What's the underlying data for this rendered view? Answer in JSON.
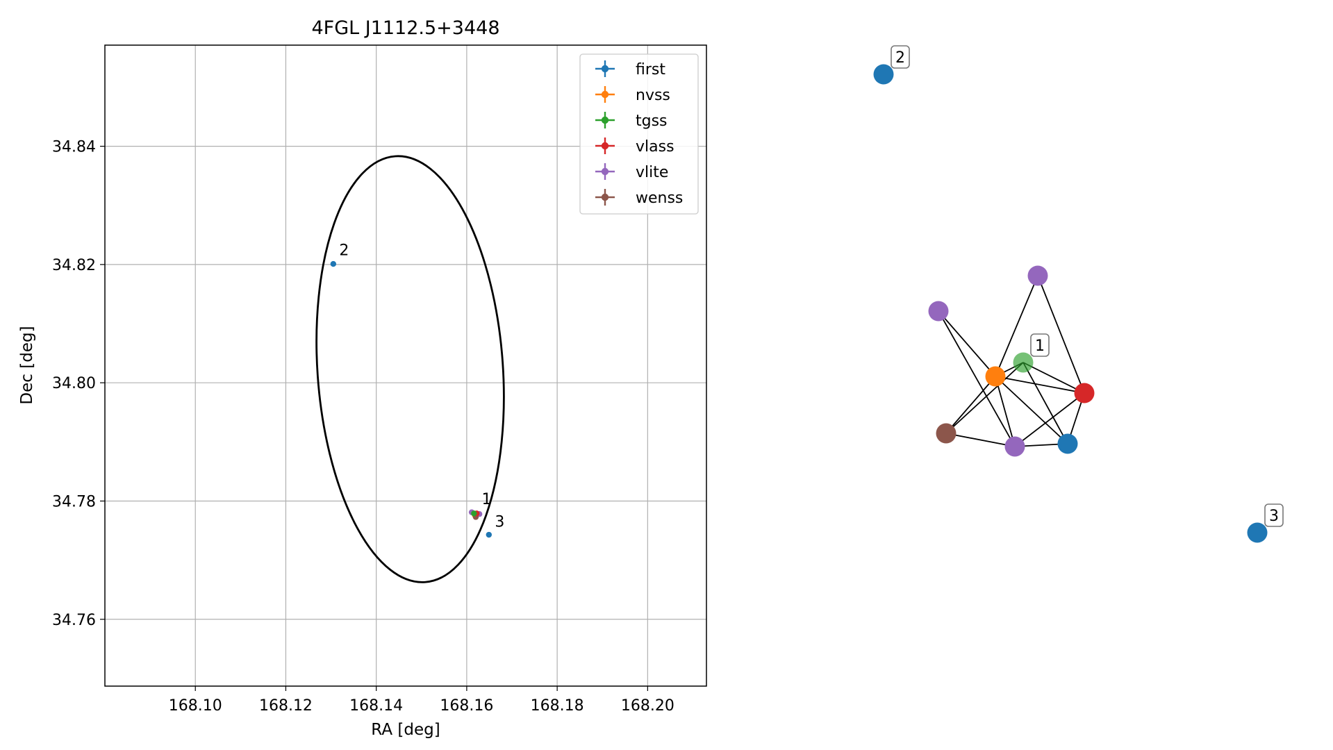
{
  "chart_data": [
    {
      "type": "scatter",
      "title": "4FGL J1112.5+3448",
      "xlabel": "RA [deg]",
      "ylabel": "Dec [deg]",
      "xlim": [
        168.08,
        168.213
      ],
      "ylim": [
        34.7487,
        34.8571
      ],
      "xticks": [
        {
          "v": 168.1,
          "label": "168.10"
        },
        {
          "v": 168.12,
          "label": "168.12"
        },
        {
          "v": 168.14,
          "label": "168.14"
        },
        {
          "v": 168.16,
          "label": "168.16"
        },
        {
          "v": 168.18,
          "label": "168.18"
        },
        {
          "v": 168.2,
          "label": "168.20"
        }
      ],
      "yticks": [
        {
          "v": 34.76,
          "label": "34.76"
        },
        {
          "v": 34.78,
          "label": "34.78"
        },
        {
          "v": 34.8,
          "label": "34.80"
        },
        {
          "v": 34.82,
          "label": "34.82"
        },
        {
          "v": 34.84,
          "label": "34.84"
        }
      ],
      "grid": true,
      "legend_position": "upper right",
      "legend": [
        {
          "name": "first",
          "color": "#1f77b4"
        },
        {
          "name": "nvss",
          "color": "#ff7f0e"
        },
        {
          "name": "tgss",
          "color": "#2ca02c"
        },
        {
          "name": "vlass",
          "color": "#d62728"
        },
        {
          "name": "vlite",
          "color": "#9467bd"
        },
        {
          "name": "wenss",
          "color": "#8c564b"
        }
      ],
      "ellipse": {
        "center_ra": 168.1475,
        "center_dec": 34.8023,
        "semi_axis_ra": 0.0205,
        "semi_axis_dec": 0.0361,
        "color": "#000000"
      },
      "points": [
        {
          "series": "first",
          "ra": 168.1305,
          "dec": 34.8201
        },
        {
          "series": "first",
          "ra": 168.1649,
          "dec": 34.7743
        },
        {
          "series": "vlite",
          "ra": 168.1611,
          "dec": 34.7781
        },
        {
          "series": "vlite",
          "ra": 168.1628,
          "dec": 34.7778
        },
        {
          "series": "nvss",
          "ra": 168.1618,
          "dec": 34.7776
        },
        {
          "series": "wenss",
          "ra": 168.162,
          "dec": 34.7773
        },
        {
          "series": "vlass",
          "ra": 168.1622,
          "dec": 34.7779
        },
        {
          "series": "tgss",
          "ra": 168.1616,
          "dec": 34.7779
        }
      ],
      "annotations": [
        {
          "text": "1",
          "ra": 168.1627,
          "dec": 34.779
        },
        {
          "text": "2",
          "ra": 168.1312,
          "dec": 34.8211
        },
        {
          "text": "3",
          "ra": 168.1656,
          "dec": 34.7752
        }
      ]
    },
    {
      "type": "network",
      "nodes": [
        {
          "id": "first_2",
          "series": "first",
          "label": "2"
        },
        {
          "id": "first_3",
          "series": "first",
          "label": "3"
        },
        {
          "id": "vlite_a",
          "series": "vlite",
          "label": ""
        },
        {
          "id": "vlite_b",
          "series": "vlite",
          "label": ""
        },
        {
          "id": "tgss",
          "series": "tgss",
          "label": "1"
        },
        {
          "id": "nvss",
          "series": "nvss",
          "label": ""
        },
        {
          "id": "vlass",
          "series": "vlass",
          "label": ""
        },
        {
          "id": "wenss",
          "series": "wenss",
          "label": ""
        },
        {
          "id": "vlite_c",
          "series": "vlite",
          "label": ""
        },
        {
          "id": "first_1",
          "series": "first",
          "label": ""
        }
      ],
      "edges": [
        [
          "vlite_b",
          "nvss"
        ],
        [
          "vlite_b",
          "vlass"
        ],
        [
          "vlite_a",
          "nvss"
        ],
        [
          "vlite_a",
          "vlite_c"
        ],
        [
          "nvss",
          "tgss"
        ],
        [
          "nvss",
          "vlass"
        ],
        [
          "nvss",
          "wenss"
        ],
        [
          "nvss",
          "vlite_c"
        ],
        [
          "nvss",
          "first_1"
        ],
        [
          "tgss",
          "wenss"
        ],
        [
          "tgss",
          "vlass"
        ],
        [
          "tgss",
          "first_1"
        ],
        [
          "wenss",
          "vlite_c"
        ],
        [
          "vlite_c",
          "first_1"
        ],
        [
          "vlite_c",
          "vlass"
        ],
        [
          "vlass",
          "first_1"
        ]
      ]
    }
  ]
}
